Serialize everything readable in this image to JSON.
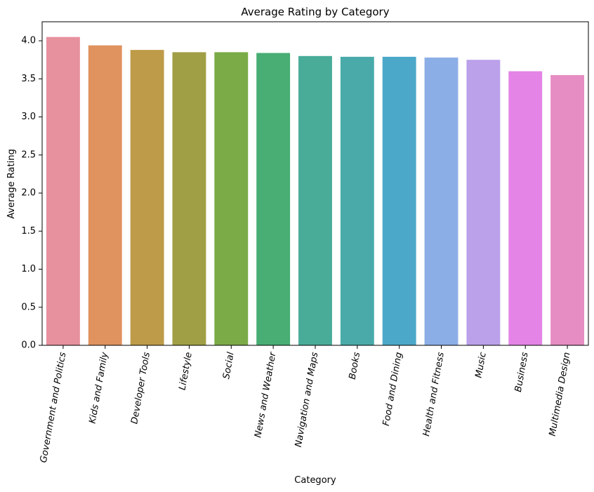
{
  "chart_data": {
    "type": "bar",
    "title": "Average Rating by Category",
    "xlabel": "Category",
    "ylabel": "Average Rating",
    "ylim": [
      0,
      4.25
    ],
    "yticks": [
      "0.0",
      "0.5",
      "1.0",
      "1.5",
      "2.0",
      "2.5",
      "3.0",
      "3.5",
      "4.0"
    ],
    "categories": [
      "Government and Politics",
      "Kids and Family",
      "Developer Tools",
      "Lifestyle",
      "Social",
      "News and Weather",
      "Navigation and Maps",
      "Books",
      "Food and Dining",
      "Health and Fitness",
      "Music",
      "Business",
      "Multimedia Design"
    ],
    "values": [
      4.05,
      3.94,
      3.88,
      3.85,
      3.85,
      3.84,
      3.8,
      3.79,
      3.79,
      3.78,
      3.75,
      3.6,
      3.55
    ],
    "colors": [
      "#e8919e",
      "#e0925f",
      "#be9b48",
      "#a09f45",
      "#7aab47",
      "#48ae73",
      "#49ac98",
      "#4aaaaa",
      "#4ba8c9",
      "#8caee6",
      "#bba0ea",
      "#e384e6",
      "#e68dc3"
    ],
    "grid": false,
    "legend": "none"
  }
}
